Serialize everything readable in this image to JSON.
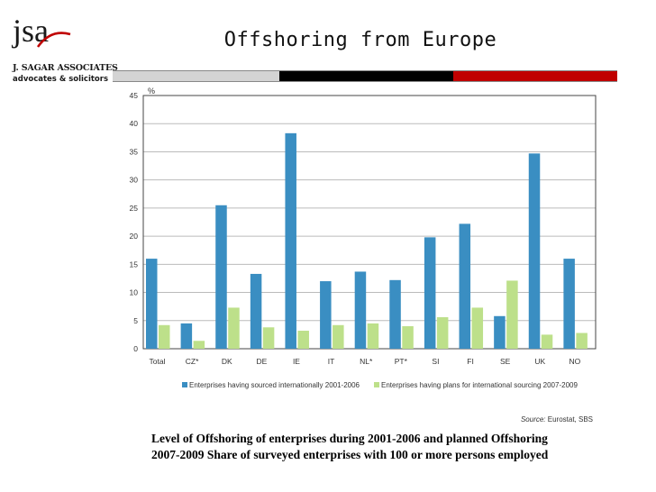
{
  "header": {
    "logo_mark": "jsa",
    "firm_name": "J. SAGAR ASSOCIATES",
    "firm_tagline": "advocates & solicitors",
    "slide_title": "Offshoring from Europe",
    "bar_colors": [
      "#d4d4d4",
      "#000000",
      "#c00000"
    ]
  },
  "chart_data": {
    "type": "bar",
    "ylabel": "%",
    "ylim": [
      0,
      45
    ],
    "yticks": [
      0,
      5,
      10,
      15,
      20,
      25,
      30,
      35,
      40,
      45
    ],
    "grid": true,
    "categories": [
      "Total",
      "CZ*",
      "DK",
      "DE",
      "IE",
      "IT",
      "NL*",
      "PT*",
      "SI",
      "FI",
      "SE",
      "UK",
      "NO"
    ],
    "series": [
      {
        "name": "Enterprises having sourced internationally 2001-2006",
        "color": "#3a8ec2",
        "values": [
          16,
          4.5,
          25.5,
          13.3,
          38.3,
          12,
          13.7,
          12.2,
          19.8,
          22.2,
          5.8,
          34.7,
          16
        ]
      },
      {
        "name": "Enterprises having plans for international sourcing 2007-2009",
        "color": "#bde08a",
        "values": [
          4.2,
          1.4,
          7.3,
          3.8,
          3.2,
          4.2,
          4.5,
          4,
          5.6,
          7.3,
          12.1,
          2.5,
          2.8
        ]
      }
    ],
    "source_label": "Source:",
    "source_text": "Eurostat, SBS"
  },
  "caption": {
    "line1": "Level of Offshoring of enterprises during 2001-2006 and planned Offshoring",
    "line2": "2007-2009 Share of surveyed enterprises with 100 or more persons employed"
  }
}
